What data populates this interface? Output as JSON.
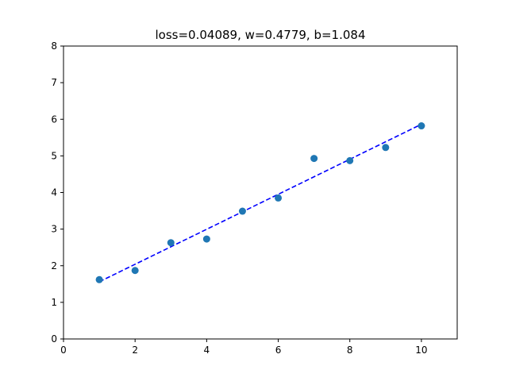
{
  "chart_data": {
    "type": "scatter",
    "title": "loss=0.04089, w=0.4779, b=1.084",
    "xlabel": "",
    "ylabel": "",
    "xlim": [
      0,
      11
    ],
    "ylim": [
      0,
      8
    ],
    "xticks": [
      0,
      2,
      4,
      6,
      8,
      10
    ],
    "yticks": [
      0,
      1,
      2,
      3,
      4,
      5,
      6,
      7,
      8
    ],
    "grid": false,
    "points": {
      "x": [
        1,
        2,
        3,
        4,
        5,
        6,
        7,
        8,
        9,
        10
      ],
      "y": [
        1.62,
        1.87,
        2.63,
        2.73,
        3.49,
        3.85,
        4.93,
        4.87,
        5.23,
        5.82
      ],
      "color": "#1f77b4"
    },
    "fit_line": {
      "w": 0.4779,
      "b": 1.084,
      "x_range": [
        1,
        10
      ],
      "color": "#0000ff",
      "style": "dashed"
    }
  }
}
